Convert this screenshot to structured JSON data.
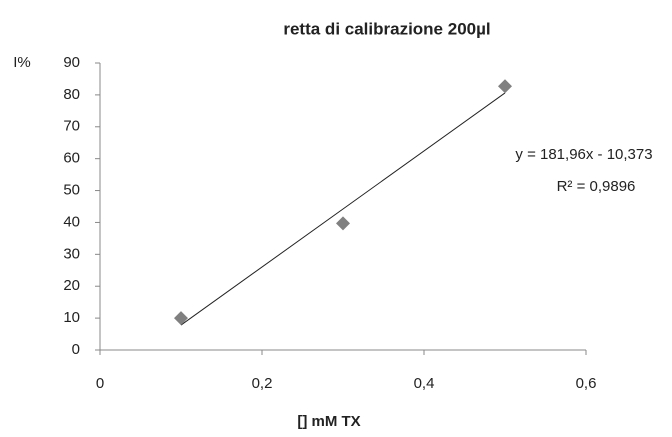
{
  "chart_data": {
    "type": "scatter",
    "title": "retta di calibrazione 200µl",
    "x_label": "[] mM TX",
    "y_label": "I%",
    "series": [
      {
        "name": "200µl",
        "color": "#808080",
        "x": [
          0.1,
          0.3,
          0.5
        ],
        "values": [
          10,
          39.7,
          82.7
        ]
      }
    ],
    "trendline": {
      "color": "#222222",
      "x": [
        0.1,
        0.5
      ],
      "values": [
        7.82,
        80.61
      ],
      "equation": "y = 181,96x - 10,373",
      "r_squared": "R² = 0,9896"
    },
    "xlim": [
      0,
      0.6
    ],
    "xticks": [
      0,
      {
        "value": 0.2,
        "label": "0,2"
      },
      {
        "value": 0.4,
        "label": "0,4"
      },
      {
        "value": 0.6,
        "label": "0,6"
      }
    ],
    "ylim": [
      0,
      90
    ],
    "yticks": [
      0,
      10,
      20,
      30,
      40,
      50,
      60,
      70,
      80,
      90
    ],
    "grid": false
  }
}
